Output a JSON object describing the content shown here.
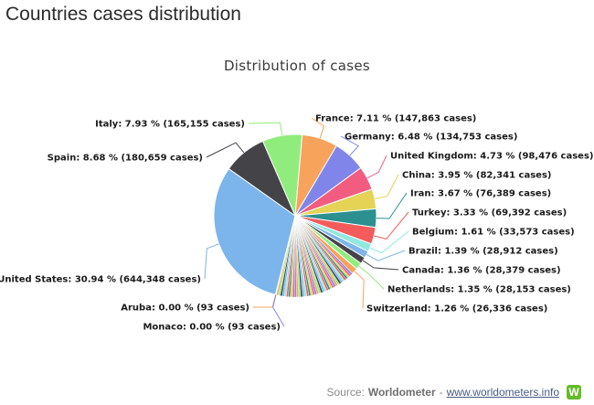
{
  "page": {
    "heading": "Countries cases distribution"
  },
  "footer": {
    "source_prefix": "Source: ",
    "source_name": "Worldometer",
    "separator": " - ",
    "link_text": "www.worldometers.info",
    "logo_letter": "W"
  },
  "chart_data": {
    "type": "pie",
    "title": "Distribution of cases",
    "slices": [
      {
        "name": "United States",
        "percent": 30.94,
        "cases": 644348,
        "label": "United States: 30.94 % (644,348 cases)",
        "color": "#7cb5ec"
      },
      {
        "name": "Spain",
        "percent": 8.68,
        "cases": 180659,
        "label": "Spain: 8.68 % (180,659 cases)",
        "color": "#434348"
      },
      {
        "name": "Italy",
        "percent": 7.93,
        "cases": 165155,
        "label": "Italy: 7.93 % (165,155 cases)",
        "color": "#90ed7d"
      },
      {
        "name": "France",
        "percent": 7.11,
        "cases": 147863,
        "label": "France: 7.11 % (147,863 cases)",
        "color": "#f7a35c"
      },
      {
        "name": "Germany",
        "percent": 6.48,
        "cases": 134753,
        "label": "Germany: 6.48 % (134,753 cases)",
        "color": "#8085e9"
      },
      {
        "name": "United Kingdom",
        "percent": 4.73,
        "cases": 98476,
        "label": "United Kingdom: 4.73 % (98,476 cases)",
        "color": "#f15c80"
      },
      {
        "name": "China",
        "percent": 3.95,
        "cases": 82341,
        "label": "China: 3.95 % (82,341 cases)",
        "color": "#e4d354"
      },
      {
        "name": "Iran",
        "percent": 3.67,
        "cases": 76389,
        "label": "Iran: 3.67 % (76,389 cases)",
        "color": "#2b908f"
      },
      {
        "name": "Turkey",
        "percent": 3.33,
        "cases": 69392,
        "label": "Turkey: 3.33 % (69,392 cases)",
        "color": "#f45b5b"
      },
      {
        "name": "Belgium",
        "percent": 1.61,
        "cases": 33573,
        "label": "Belgium: 1.61 % (33,573 cases)",
        "color": "#91e8e1"
      },
      {
        "name": "Brazil",
        "percent": 1.39,
        "cases": 28912,
        "label": "Brazil: 1.39 % (28,912 cases)",
        "color": "#7cb5ec"
      },
      {
        "name": "Canada",
        "percent": 1.36,
        "cases": 28379,
        "label": "Canada: 1.36 % (28,379 cases)",
        "color": "#434348"
      },
      {
        "name": "Netherlands",
        "percent": 1.35,
        "cases": 28153,
        "label": "Netherlands: 1.35 % (28,153 cases)",
        "color": "#90ed7d"
      },
      {
        "name": "Switzerland",
        "percent": 1.26,
        "cases": 26336,
        "label": "Switzerland: 1.26 % (26,336 cases)",
        "color": "#f7a35c"
      },
      {
        "name": "Monaco",
        "percent": 0.0,
        "cases": 93,
        "label": "Monaco: 0.00 % (93 cases)",
        "color": "#8085e9"
      },
      {
        "name": "Aruba",
        "percent": 0.0,
        "cases": 93,
        "label": "Aruba: 0.00 % (93 cases)",
        "color": "#f7a35c"
      }
    ],
    "others_colors": [
      "#8085e9",
      "#f15c80",
      "#e4d354",
      "#2b908f",
      "#f45b5b",
      "#91e8e1",
      "#7cb5ec",
      "#434348",
      "#90ed7d",
      "#f7a35c"
    ]
  }
}
